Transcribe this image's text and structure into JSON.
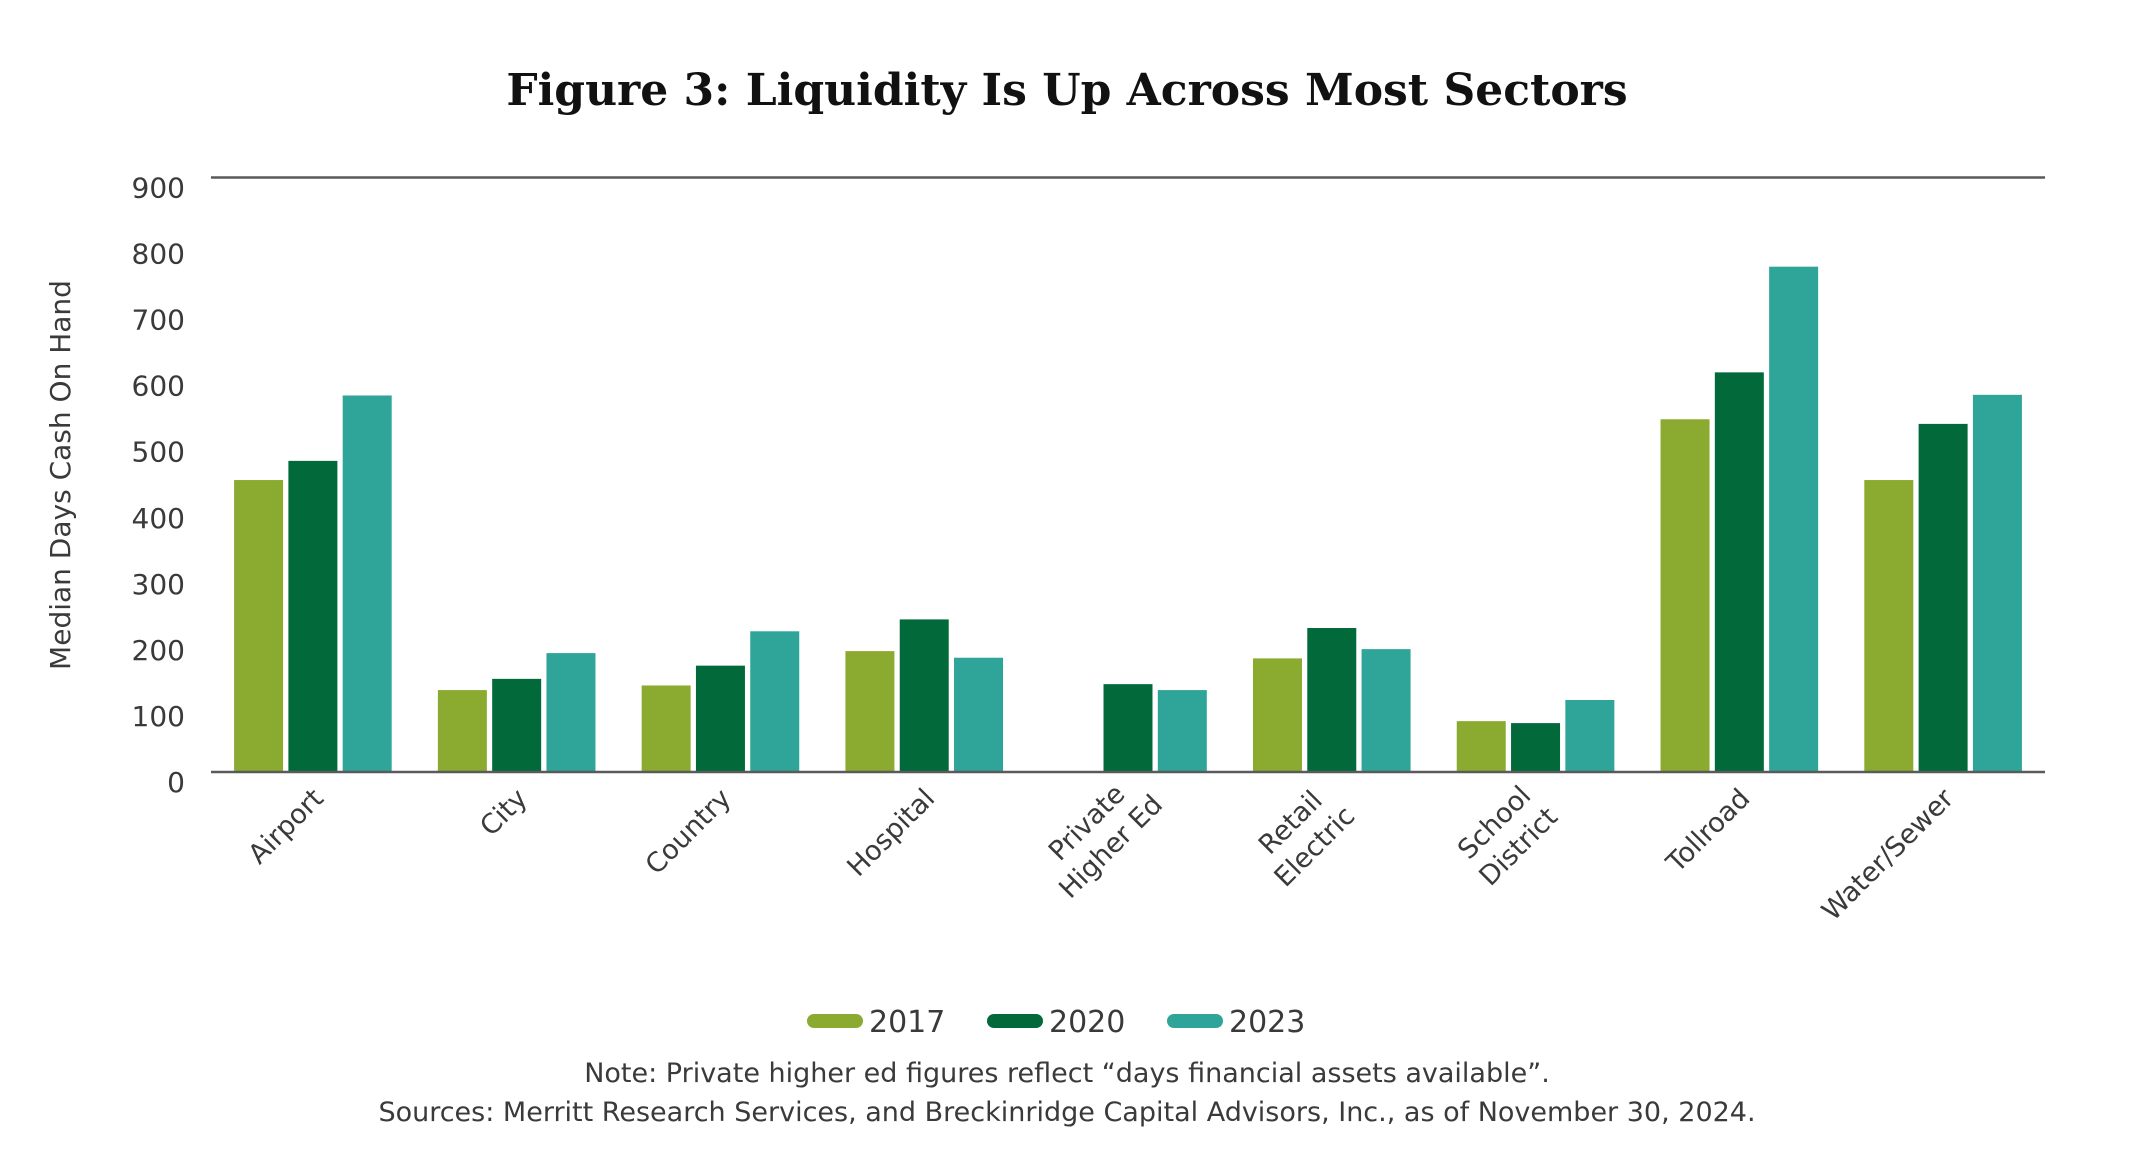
{
  "chart_data": {
    "type": "bar",
    "title": "Figure 3: Liquidity Is Up Across Most Sectors",
    "xlabel": "",
    "ylabel": "Median Days Cash On Hand",
    "ylim": [
      0,
      900
    ],
    "yticks": [
      0,
      100,
      200,
      300,
      400,
      500,
      600,
      700,
      800,
      900
    ],
    "grid": false,
    "legend_position": "bottom-center",
    "categories": [
      [
        "Airport"
      ],
      [
        "City"
      ],
      [
        "Country"
      ],
      [
        "Hospital"
      ],
      [
        "Private",
        "Higher Ed"
      ],
      [
        "Retail",
        "Electric"
      ],
      [
        "School",
        "District"
      ],
      [
        "Tollroad"
      ],
      [
        "Water/Sewer"
      ]
    ],
    "series": [
      {
        "name": "2017",
        "color": "#8aab30",
        "values": [
          442,
          124,
          131,
          183,
          null,
          172,
          77,
          534,
          442
        ]
      },
      {
        "name": "2020",
        "color": "#02693a",
        "values": [
          471,
          141,
          161,
          231,
          133,
          218,
          74,
          605,
          527
        ]
      },
      {
        "name": "2023",
        "color": "#2ea598",
        "values": [
          570,
          180,
          213,
          173,
          124,
          186,
          109,
          765,
          571
        ]
      }
    ],
    "notes": [
      "Note: Private higher ed figures reflect “days financial assets available”.",
      "Sources: Merritt Research Services, and Breckinridge Capital Advisors, Inc., as of November 30, 2024."
    ]
  }
}
